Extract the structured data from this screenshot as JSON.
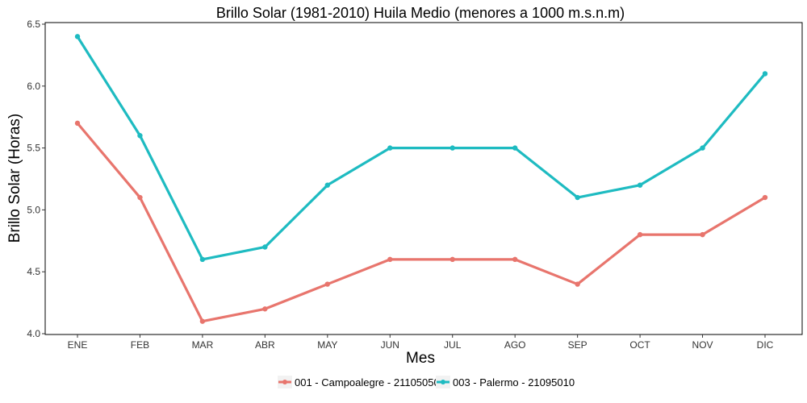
{
  "chart_data": {
    "type": "line",
    "title": "Brillo Solar (1981-2010) Huila Medio (menores a 1000 m.s.n.m)",
    "xlabel": "Mes",
    "ylabel": "Brillo Solar (Horas)",
    "categories": [
      "ENE",
      "FEB",
      "MAR",
      "ABR",
      "MAY",
      "JUN",
      "JUL",
      "AGO",
      "SEP",
      "OCT",
      "NOV",
      "DIC"
    ],
    "ylim": [
      4.0,
      6.5
    ],
    "yticks": [
      4.0,
      4.5,
      5.0,
      5.5,
      6.0,
      6.5
    ],
    "ytick_labels": [
      "4.0",
      "4.5",
      "5.0",
      "5.5",
      "6.0",
      "6.5"
    ],
    "grid": false,
    "legend_position": "bottom",
    "series": [
      {
        "name": "001 - Campoalegre - 21105050",
        "color": "#E8756D",
        "values": [
          5.7,
          5.1,
          4.1,
          4.2,
          4.4,
          4.6,
          4.6,
          4.6,
          4.4,
          4.8,
          4.8,
          5.1
        ]
      },
      {
        "name": "003 - Palermo - 21095010",
        "color": "#1EBBC1",
        "values": [
          6.4,
          5.6,
          4.6,
          4.7,
          5.2,
          5.5,
          5.5,
          5.5,
          5.1,
          5.2,
          5.5,
          6.1
        ]
      }
    ]
  }
}
